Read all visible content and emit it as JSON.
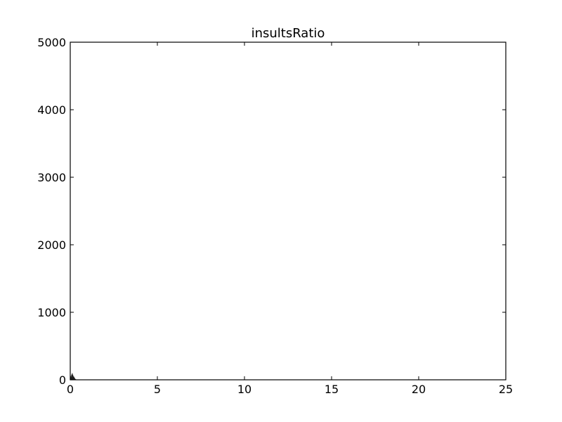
{
  "chart_data": {
    "type": "bar",
    "title": "insultsRatio",
    "xlabel": "",
    "ylabel": "",
    "xlim": [
      0,
      25
    ],
    "ylim": [
      0,
      5000
    ],
    "x_ticks": [
      0,
      5,
      10,
      15,
      20,
      25
    ],
    "y_ticks": [
      0,
      1000,
      2000,
      3000,
      4000,
      5000
    ],
    "bin_width": 0.0125,
    "grid": false,
    "legend": "none",
    "bar_color": "#000000",
    "series": [
      {
        "bins": [
          {
            "x": 0.0,
            "count": 50
          },
          {
            "x": 0.0125,
            "count": 30
          },
          {
            "x": 0.025,
            "count": 55
          },
          {
            "x": 0.0375,
            "count": 40
          },
          {
            "x": 0.05,
            "count": 70
          },
          {
            "x": 0.0625,
            "count": 60
          },
          {
            "x": 0.075,
            "count": 85
          },
          {
            "x": 0.0875,
            "count": 80
          },
          {
            "x": 0.1,
            "count": 100
          },
          {
            "x": 0.1125,
            "count": 90
          },
          {
            "x": 0.125,
            "count": 95
          },
          {
            "x": 0.1375,
            "count": 70
          },
          {
            "x": 0.15,
            "count": 75
          },
          {
            "x": 0.1625,
            "count": 60
          },
          {
            "x": 0.175,
            "count": 55
          },
          {
            "x": 0.1875,
            "count": 45
          },
          {
            "x": 0.2,
            "count": 50
          },
          {
            "x": 0.2125,
            "count": 35
          },
          {
            "x": 0.225,
            "count": 40
          },
          {
            "x": 0.2375,
            "count": 25
          },
          {
            "x": 0.25,
            "count": 30
          },
          {
            "x": 0.2625,
            "count": 20
          },
          {
            "x": 0.275,
            "count": 15
          },
          {
            "x": 0.2875,
            "count": 10
          },
          {
            "x": 0.3,
            "count": 12
          },
          {
            "x": 0.3125,
            "count": 8
          },
          {
            "x": 0.325,
            "count": 6
          },
          {
            "x": 0.3375,
            "count": 5
          },
          {
            "x": 0.35,
            "count": 4
          },
          {
            "x": 0.375,
            "count": 3
          },
          {
            "x": 0.4,
            "count": 2
          },
          {
            "x": 0.45,
            "count": 2
          },
          {
            "x": 0.5,
            "count": 1
          },
          {
            "x": 0.6,
            "count": 1
          }
        ]
      }
    ]
  }
}
